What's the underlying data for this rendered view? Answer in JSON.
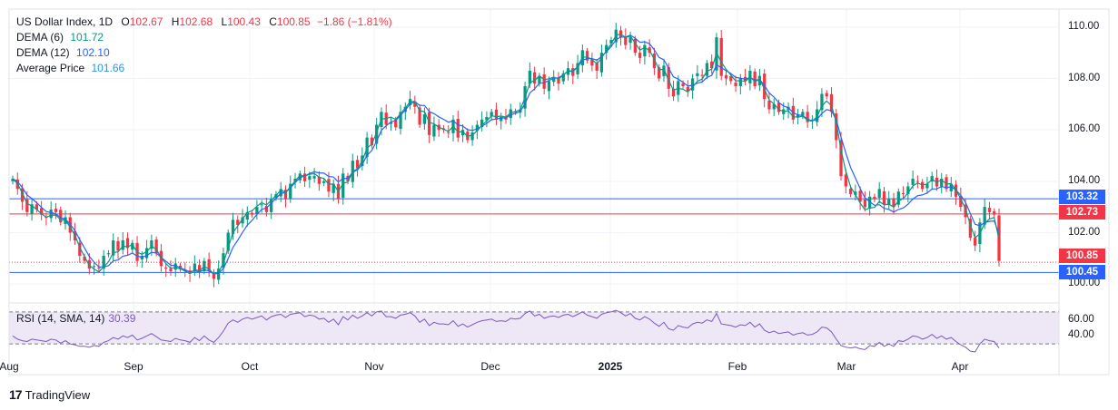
{
  "legend": {
    "symbol": "US Dollar Index, 1D",
    "o_label": "O",
    "o_value": "102.67",
    "h_label": "H",
    "h_value": "102.68",
    "l_label": "L",
    "l_value": "100.43",
    "c_label": "C",
    "c_value": "100.85",
    "change": "−1.86 (−1.81%)",
    "dema6_label": "DEMA (6)",
    "dema6_value": "101.72",
    "dema12_label": "DEMA (12)",
    "dema12_value": "102.10",
    "avg_label": "Average Price",
    "avg_value": "101.66"
  },
  "rsi": {
    "label": "RSI (14, SMA, 14)",
    "value": "30.39"
  },
  "price_tags": {
    "upper_line": "103.32",
    "red_line": "102.73",
    "close": "100.85",
    "lower_line": "100.45"
  },
  "colors": {
    "up": "#089981",
    "down": "#f23645",
    "dema6": "#089981",
    "dema12": "#2962ff",
    "resistance": "#2962ff",
    "rsi": "#7e57c2",
    "rsi_band": "#ede7f6"
  },
  "brand": {
    "name": "TradingView",
    "logo": "17"
  },
  "chart_data": {
    "type": "candlestick",
    "y_axis": {
      "ticks": [
        "110.00",
        "108.00",
        "106.00",
        "104.00",
        "102.00",
        "100.00"
      ],
      "range": [
        99.3,
        110.7
      ]
    },
    "rsi_axis": {
      "ticks": [
        "60.00",
        "40.00"
      ],
      "upper_band": 70,
      "lower_band": 30,
      "range": [
        20,
        80
      ]
    },
    "x_labels": [
      {
        "label": "Aug",
        "bold": false
      },
      {
        "label": "Sep",
        "bold": false
      },
      {
        "label": "Oct",
        "bold": false
      },
      {
        "label": "Nov",
        "bold": false
      },
      {
        "label": "Dec",
        "bold": false
      },
      {
        "label": "2025",
        "bold": true
      },
      {
        "label": "Feb",
        "bold": false
      },
      {
        "label": "Mar",
        "bold": false
      },
      {
        "label": "Apr",
        "bold": false
      }
    ],
    "horizontal_lines": [
      {
        "value": 103.32,
        "color": "#2962ff"
      },
      {
        "value": 102.73,
        "color": "#f23645"
      },
      {
        "value": 100.45,
        "color": "#2962ff"
      }
    ],
    "close_line": 100.85,
    "close_path": [
      104.1,
      103.7,
      103.2,
      102.8,
      103.1,
      102.9,
      102.7,
      102.6,
      102.9,
      102.8,
      102.4,
      102.6,
      102.0,
      101.7,
      101.1,
      100.9,
      100.6,
      100.7,
      100.6,
      101.1,
      101.2,
      101.7,
      101.3,
      101.7,
      101.4,
      101.6,
      100.9,
      101.1,
      101.4,
      101.7,
      101.2,
      100.7,
      100.6,
      100.5,
      100.8,
      100.6,
      100.5,
      100.4,
      100.8,
      100.5,
      100.9,
      100.5,
      100.2,
      100.6,
      101.2,
      102.0,
      102.5,
      102.3,
      102.6,
      102.8,
      102.7,
      103.0,
      103.1,
      102.8,
      103.3,
      103.5,
      103.7,
      103.3,
      103.9,
      104.1,
      104.3,
      104.0,
      104.2,
      104.2,
      103.9,
      104.0,
      103.6,
      103.9,
      103.3,
      104.3,
      104.0,
      104.8,
      104.5,
      105.0,
      105.7,
      105.4,
      106.2,
      106.7,
      106.2,
      106.3,
      106.1,
      106.7,
      106.9,
      107.2,
      106.9,
      106.2,
      106.6,
      105.8,
      106.2,
      106.0,
      106.0,
      105.9,
      106.4,
      105.7,
      106.0,
      105.6,
      105.9,
      106.2,
      106.4,
      106.5,
      106.7,
      106.4,
      106.5,
      106.4,
      106.8,
      106.7,
      106.8,
      107.7,
      108.3,
      107.8,
      108.1,
      107.6,
      107.9,
      108.0,
      107.8,
      108.2,
      108.4,
      108.1,
      108.6,
      109.1,
      108.7,
      108.5,
      108.3,
      109.0,
      109.3,
      109.5,
      109.9,
      109.6,
      109.3,
      109.6,
      109.0,
      108.8,
      109.3,
      109.0,
      108.4,
      108.0,
      108.5,
      107.6,
      107.3,
      107.9,
      107.7,
      107.5,
      108.0,
      108.2,
      108.1,
      108.6,
      108.4,
      109.6,
      108.1,
      108.0,
      107.9,
      107.7,
      108.0,
      107.9,
      108.3,
      107.7,
      108.1,
      107.2,
      106.8,
      107.0,
      106.7,
      106.8,
      106.9,
      106.4,
      106.6,
      106.7,
      106.3,
      106.4,
      106.8,
      107.4,
      107.3,
      106.7,
      105.6,
      104.2,
      103.8,
      103.5,
      103.6,
      103.2,
      103.0,
      103.4,
      103.3,
      103.7,
      103.1,
      103.3,
      103.0,
      103.6,
      103.5,
      103.8,
      104.1,
      104.0,
      103.7,
      103.9,
      104.2,
      103.8,
      104.1,
      103.7,
      103.9,
      103.4,
      103.0,
      102.6,
      101.8,
      101.5,
      102.4,
      103.0,
      102.8,
      102.7,
      100.9
    ],
    "rsi_values": [
      40,
      36,
      34,
      33,
      36,
      35,
      34,
      33,
      36,
      35,
      31,
      34,
      30,
      29,
      27,
      27,
      26,
      28,
      27,
      32,
      34,
      38,
      36,
      40,
      38,
      41,
      35,
      37,
      40,
      43,
      39,
      35,
      34,
      33,
      37,
      35,
      34,
      32,
      38,
      34,
      40,
      35,
      32,
      38,
      46,
      56,
      60,
      57,
      61,
      63,
      61,
      63,
      65,
      60,
      64,
      66,
      67,
      63,
      67,
      68,
      69,
      64,
      66,
      65,
      61,
      62,
      57,
      61,
      54,
      64,
      60,
      66,
      62,
      65,
      69,
      65,
      70,
      71,
      64,
      64,
      62,
      66,
      67,
      69,
      65,
      57,
      61,
      53,
      57,
      55,
      55,
      54,
      59,
      52,
      55,
      51,
      54,
      57,
      59,
      60,
      61,
      58,
      59,
      58,
      62,
      61,
      62,
      68,
      71,
      65,
      67,
      62,
      64,
      65,
      63,
      66,
      67,
      64,
      67,
      70,
      66,
      64,
      62,
      67,
      69,
      70,
      72,
      69,
      65,
      68,
      62,
      60,
      64,
      61,
      56,
      52,
      57,
      49,
      47,
      53,
      51,
      50,
      55,
      57,
      56,
      60,
      58,
      68,
      55,
      54,
      53,
      51,
      54,
      53,
      57,
      51,
      55,
      47,
      44,
      46,
      43,
      44,
      45,
      41,
      43,
      44,
      41,
      42,
      45,
      51,
      50,
      45,
      36,
      28,
      26,
      25,
      26,
      24,
      23,
      28,
      27,
      32,
      27,
      30,
      27,
      34,
      33,
      36,
      40,
      39,
      36,
      38,
      42,
      37,
      40,
      36,
      38,
      33,
      29,
      26,
      21,
      20,
      30,
      36,
      34,
      33,
      25
    ]
  }
}
